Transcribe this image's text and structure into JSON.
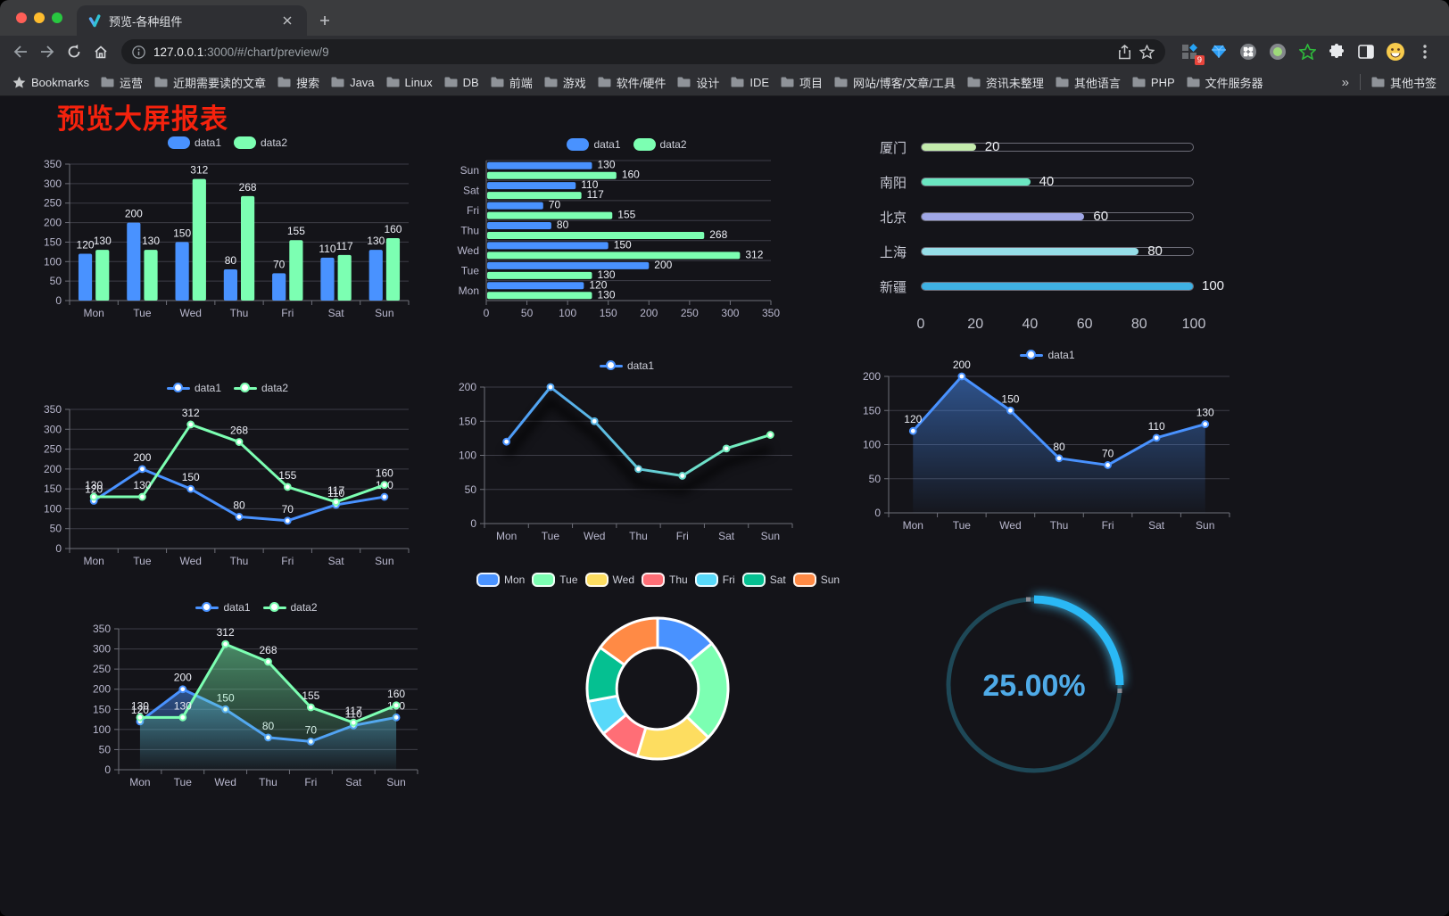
{
  "browser": {
    "tab": {
      "title": "预览-各种组件"
    },
    "url": {
      "host": "127.0.0.1",
      "path": ":3000/#/chart/preview/9"
    },
    "extensions_badge": "9",
    "bookmarks": {
      "root_label": "Bookmarks",
      "items": [
        "运营",
        "近期需要读的文章",
        "搜索",
        "Java",
        "Linux",
        "DB",
        "前端",
        "游戏",
        "软件/硬件",
        "设计",
        "IDE",
        "项目",
        "网站/博客/文章/工具",
        "资讯未整理",
        "其他语言",
        "PHP",
        "文件服务器"
      ],
      "overflow_glyph": "»",
      "other_bookmarks_label": "其他书签"
    }
  },
  "page": {
    "title": "预览大屏报表"
  },
  "chart_data": [
    {
      "id": "bar-vertical",
      "type": "bar",
      "categories": [
        "Mon",
        "Tue",
        "Wed",
        "Thu",
        "Fri",
        "Sat",
        "Sun"
      ],
      "series": [
        {
          "name": "data1",
          "color": "#4992ff",
          "values": [
            120,
            200,
            150,
            80,
            70,
            110,
            130
          ]
        },
        {
          "name": "data2",
          "color": "#7cffb2",
          "values": [
            130,
            130,
            312,
            268,
            155,
            117,
            160
          ]
        }
      ],
      "ylim": [
        0,
        350
      ],
      "ytick": 50,
      "legend_position": "top",
      "grid": true
    },
    {
      "id": "bar-horizontal",
      "type": "bar",
      "orientation": "horizontal",
      "categories_top_to_bottom": [
        "Sun",
        "Sat",
        "Fri",
        "Thu",
        "Wed",
        "Tue",
        "Mon"
      ],
      "series": [
        {
          "name": "data1",
          "color": "#4992ff",
          "values_top_to_bottom": [
            130,
            110,
            70,
            80,
            150,
            200,
            120
          ]
        },
        {
          "name": "data2",
          "color": "#7cffb2",
          "values_top_to_bottom": [
            160,
            117,
            155,
            268,
            312,
            130,
            130
          ]
        }
      ],
      "xlim": [
        0,
        350
      ],
      "xtick": 50,
      "legend_position": "top"
    },
    {
      "id": "capsule-progress",
      "type": "bar",
      "orientation": "horizontal-capsule",
      "rows": [
        {
          "label": "厦门",
          "value": 20,
          "color": "#c4ebad"
        },
        {
          "label": "南阳",
          "value": 40,
          "color": "#6be6c1"
        },
        {
          "label": "北京",
          "value": 60,
          "color": "#a0a7e6"
        },
        {
          "label": "上海",
          "value": 80,
          "color": "#96dee8"
        },
        {
          "label": "新疆",
          "value": 100,
          "color": "#3fb1e3"
        }
      ],
      "xlim": [
        0,
        100
      ],
      "xticks": [
        0,
        20,
        40,
        60,
        80,
        100
      ]
    },
    {
      "id": "line-two-series",
      "type": "line",
      "categories": [
        "Mon",
        "Tue",
        "Wed",
        "Thu",
        "Fri",
        "Sat",
        "Sun"
      ],
      "series": [
        {
          "name": "data1",
          "color": "#4992ff",
          "values": [
            120,
            200,
            150,
            80,
            70,
            110,
            130
          ]
        },
        {
          "name": "data2",
          "color": "#7cffb2",
          "values": [
            130,
            130,
            312,
            268,
            155,
            117,
            160
          ]
        }
      ],
      "ylim": [
        0,
        350
      ],
      "ytick": 50,
      "point_labels": true
    },
    {
      "id": "line-gradient",
      "type": "line",
      "categories": [
        "Mon",
        "Tue",
        "Wed",
        "Thu",
        "Fri",
        "Sat",
        "Sun"
      ],
      "series": [
        {
          "name": "data1",
          "color_start": "#4992ff",
          "color_end": "#7cffb2",
          "values": [
            120,
            200,
            150,
            80,
            70,
            110,
            130
          ]
        }
      ],
      "ylim": [
        0,
        200
      ],
      "ytick": 50,
      "point_labels": false
    },
    {
      "id": "line-area-single",
      "type": "area",
      "categories": [
        "Mon",
        "Tue",
        "Wed",
        "Thu",
        "Fri",
        "Sat",
        "Sun"
      ],
      "series": [
        {
          "name": "data1",
          "color": "#4992ff",
          "values": [
            120,
            200,
            150,
            80,
            70,
            110,
            130
          ]
        }
      ],
      "ylim": [
        0,
        200
      ],
      "ytick": 50,
      "point_labels": true
    },
    {
      "id": "line-area-two",
      "type": "area",
      "categories": [
        "Mon",
        "Tue",
        "Wed",
        "Thu",
        "Fri",
        "Sat",
        "Sun"
      ],
      "series": [
        {
          "name": "data1",
          "color": "#4992ff",
          "values": [
            120,
            200,
            150,
            80,
            70,
            110,
            130
          ]
        },
        {
          "name": "data2",
          "color": "#7cffb2",
          "values": [
            130,
            130,
            312,
            268,
            155,
            117,
            160
          ]
        }
      ],
      "ylim": [
        0,
        350
      ],
      "ytick": 50,
      "point_labels": true
    },
    {
      "id": "donut",
      "type": "pie",
      "labels": [
        "Mon",
        "Tue",
        "Wed",
        "Thu",
        "Fri",
        "Sat",
        "Sun"
      ],
      "values": [
        120,
        200,
        150,
        80,
        70,
        110,
        130
      ],
      "colors": [
        "#4992ff",
        "#7cffb2",
        "#fddd60",
        "#ff6e76",
        "#58d9f9",
        "#05c091",
        "#ff8a45"
      ],
      "inner_radius_ratio": 0.58,
      "legend_position": "top"
    },
    {
      "id": "gauge",
      "type": "gauge",
      "value_text": "25.00%",
      "percent": 25,
      "track_color": "#1e4857",
      "progress_color": "#2ab8f5",
      "text_color": "#4fabe8"
    }
  ]
}
